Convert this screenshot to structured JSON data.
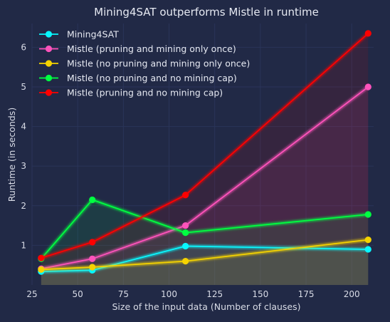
{
  "chart_data": {
    "type": "line",
    "title": "Mining4SAT outperforms Mistle in runtime",
    "xlabel": "Size of the input data (Number of clauses)",
    "ylabel": "Runtime (in seconds)",
    "x": [
      30,
      58,
      109,
      209
    ],
    "xlim": [
      25,
      212
    ],
    "ylim": [
      0,
      6.6
    ],
    "xticks": [
      25,
      50,
      75,
      100,
      125,
      150,
      175,
      200
    ],
    "yticks": [
      1,
      2,
      3,
      4,
      5,
      6
    ],
    "grid": true,
    "legend_position": "top-left",
    "series": [
      {
        "name": "Mining4SAT",
        "color": "#08F7FE",
        "values": [
          0.34,
          0.37,
          0.98,
          0.9
        ]
      },
      {
        "name": "Mistle (pruning and mining only once)",
        "color": "#FE53BB",
        "values": [
          0.41,
          0.66,
          1.5,
          5.0
        ]
      },
      {
        "name": "Mistle (no pruning and mining only once)",
        "color": "#F5D300",
        "values": [
          0.39,
          0.45,
          0.6,
          1.14
        ]
      },
      {
        "name": "Mistle (no pruning and no mining cap)",
        "color": "#00ff41",
        "values": [
          0.66,
          2.15,
          1.32,
          1.78
        ]
      },
      {
        "name": "Mistle (pruning and no mining cap)",
        "color": "#FF0000",
        "values": [
          0.68,
          1.08,
          2.27,
          6.35
        ]
      }
    ]
  }
}
